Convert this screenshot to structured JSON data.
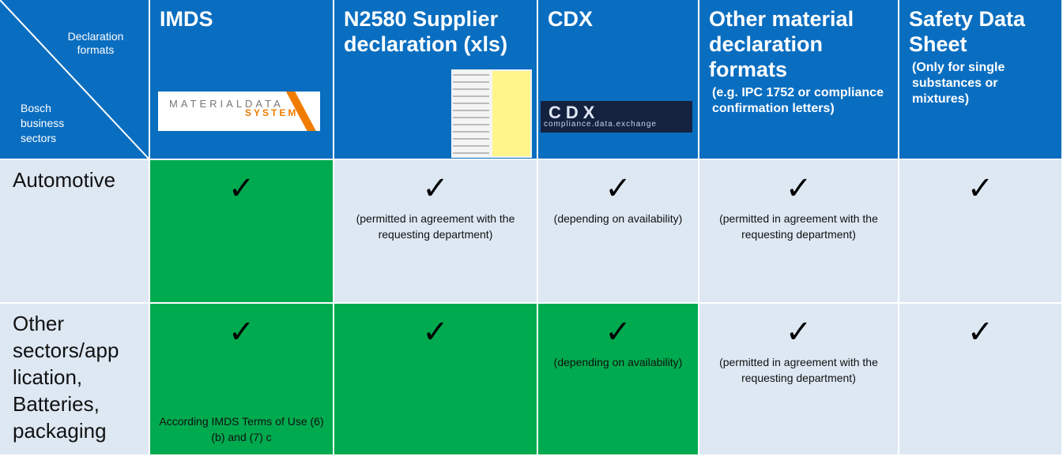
{
  "corner": {
    "top": "Declaration formats",
    "bottom": "Bosch business sectors"
  },
  "columns": [
    {
      "title": "IMDS",
      "logo": [
        "MATERIALDATA",
        "SYSTEM"
      ]
    },
    {
      "title": "N2580 Supplier declaration (xls)"
    },
    {
      "title": "CDX",
      "logo": [
        "CDX",
        "compliance.data.exchange"
      ]
    },
    {
      "title": "Other material declaration formats",
      "subtitle": "(e.g. IPC 1752 or compliance confirmation letters)"
    },
    {
      "title": "Safety Data Sheet",
      "subtitle": "(Only for single substances or mixtures)"
    }
  ],
  "rows": [
    {
      "label": [
        "Automotive"
      ],
      "cells": [
        {
          "check": "✓",
          "highlight": true
        },
        {
          "check": "✓",
          "note": "(permitted in agreement with the requesting department)"
        },
        {
          "check": "✓",
          "note": "(depending on availability)"
        },
        {
          "check": "✓",
          "note": "(permitted in agreement with the requesting department)"
        },
        {
          "check": "✓"
        }
      ]
    },
    {
      "label": [
        "Other",
        "sectors/app",
        "lication,",
        "Batteries,",
        "packaging"
      ],
      "cells": [
        {
          "check": "✓",
          "highlight": true,
          "note": "According IMDS Terms of Use (6) (b) and (7) c"
        },
        {
          "check": "✓",
          "highlight": true
        },
        {
          "check": "✓",
          "highlight": true,
          "note": "(depending on availability)"
        },
        {
          "check": "✓",
          "note": "(permitted in agreement with the requesting department)"
        },
        {
          "check": "✓"
        }
      ]
    }
  ],
  "colors": {
    "header": "#0a6ec0",
    "cell": "#dde8f3",
    "highlight": "#00aa4e"
  }
}
